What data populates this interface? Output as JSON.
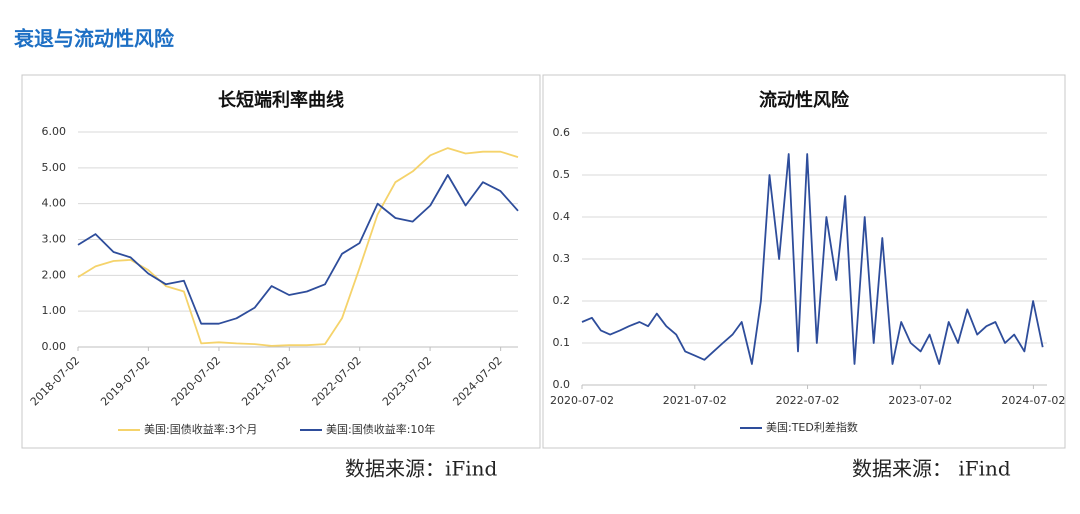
{
  "title": "衰退与流动性风险",
  "chart_data": [
    {
      "type": "line",
      "title": "长短端利率曲线",
      "x": [
        "2018-07-02",
        "2018-10-01",
        "2019-01-02",
        "2019-04-01",
        "2019-07-01",
        "2019-10-01",
        "2020-01-02",
        "2020-04-01",
        "2020-07-01",
        "2020-10-01",
        "2021-01-04",
        "2021-04-01",
        "2021-07-01",
        "2021-10-01",
        "2022-01-03",
        "2022-04-01",
        "2022-07-01",
        "2022-10-03",
        "2023-01-03",
        "2023-04-03",
        "2023-07-03",
        "2023-10-02",
        "2024-01-02",
        "2024-04-01",
        "2024-07-01",
        "2024-09-30"
      ],
      "series": [
        {
          "name": "美国:国债收益率:3个月",
          "color": "#f5d36b",
          "values": [
            1.95,
            2.25,
            2.4,
            2.43,
            2.15,
            1.7,
            1.55,
            0.1,
            0.13,
            0.1,
            0.08,
            0.03,
            0.05,
            0.05,
            0.08,
            0.8,
            2.2,
            3.7,
            4.6,
            4.9,
            5.35,
            5.55,
            5.4,
            5.45,
            5.45,
            5.3
          ]
        },
        {
          "name": "美国:国债收益率:10年",
          "color": "#2e4d9b",
          "values": [
            2.85,
            3.15,
            2.65,
            2.5,
            2.05,
            1.75,
            1.85,
            0.65,
            0.65,
            0.8,
            1.1,
            1.7,
            1.45,
            1.55,
            1.75,
            2.6,
            2.9,
            4.0,
            3.6,
            3.5,
            3.95,
            4.8,
            3.95,
            4.6,
            4.35,
            3.8
          ]
        }
      ],
      "xlim": [
        "2018-07-02",
        "2024-09-30"
      ],
      "xticks": [
        "2018-07-02",
        "2019-07-02",
        "2020-07-02",
        "2021-07-02",
        "2022-07-02",
        "2023-07-02",
        "2024-07-02"
      ],
      "ylim": [
        0,
        6
      ],
      "yticks": [
        {
          "value": 0,
          "label": "0.00"
        },
        {
          "value": 1,
          "label": "1.00"
        },
        {
          "value": 2,
          "label": "2.00"
        },
        {
          "value": 3,
          "label": "3.00"
        },
        {
          "value": 4,
          "label": "4.00"
        },
        {
          "value": 5,
          "label": "5.00"
        },
        {
          "value": 6,
          "label": "6.00"
        }
      ],
      "grid": true,
      "source": "数据来源：iFind"
    },
    {
      "type": "line",
      "title": "流动性风险",
      "x": [
        "2020-07-02",
        "2020-08-03",
        "2020-09-01",
        "2020-10-01",
        "2020-11-02",
        "2020-12-01",
        "2021-01-04",
        "2021-02-01",
        "2021-03-01",
        "2021-04-01",
        "2021-05-03",
        "2021-06-01",
        "2021-07-02",
        "2021-08-02",
        "2021-09-01",
        "2021-10-01",
        "2021-11-01",
        "2021-12-01",
        "2022-01-03",
        "2022-02-01",
        "2022-03-01",
        "2022-04-01",
        "2022-05-02",
        "2022-06-01",
        "2022-07-01",
        "2022-08-01",
        "2022-09-01",
        "2022-10-03",
        "2022-11-01",
        "2022-12-01",
        "2023-01-03",
        "2023-02-01",
        "2023-03-01",
        "2023-04-03",
        "2023-05-01",
        "2023-06-01",
        "2023-07-03",
        "2023-08-01",
        "2023-09-01",
        "2023-10-02",
        "2023-11-01",
        "2023-12-01",
        "2024-01-02",
        "2024-02-01",
        "2024-03-01",
        "2024-04-01",
        "2024-05-01",
        "2024-06-03",
        "2024-07-01",
        "2024-08-01"
      ],
      "series": [
        {
          "name": "美国:TED利差指数",
          "color": "#2e4d9b",
          "values": [
            0.15,
            0.16,
            0.13,
            0.12,
            0.13,
            0.14,
            0.15,
            0.14,
            0.17,
            0.14,
            0.12,
            0.08,
            0.07,
            0.06,
            0.08,
            0.1,
            0.12,
            0.15,
            0.05,
            0.2,
            0.5,
            0.3,
            0.55,
            0.08,
            0.55,
            0.1,
            0.4,
            0.25,
            0.45,
            0.05,
            0.4,
            0.1,
            0.35,
            0.05,
            0.15,
            0.1,
            0.08,
            0.12,
            0.05,
            0.15,
            0.1,
            0.18,
            0.12,
            0.14,
            0.15,
            0.1,
            0.12,
            0.08,
            0.2,
            0.09
          ]
        }
      ],
      "xlim": [
        "2020-07-02",
        "2024-08-15"
      ],
      "xticks": [
        "2020-07-02",
        "2021-07-02",
        "2022-07-02",
        "2023-07-02",
        "2024-07-02"
      ],
      "ylim": [
        0,
        0.6
      ],
      "yticks": [
        {
          "value": 0,
          "label": "0.0"
        },
        0.1,
        0.2,
        0.3,
        0.4,
        0.5,
        0.6
      ],
      "grid": true,
      "source": "数据来源： iFind"
    }
  ]
}
